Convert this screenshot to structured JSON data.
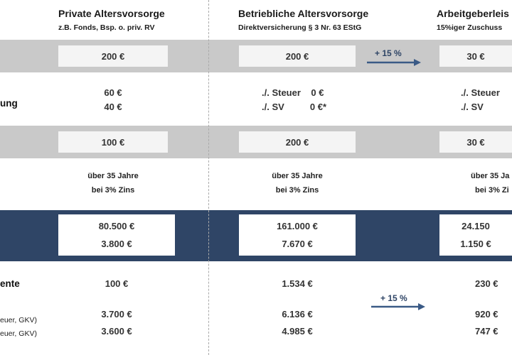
{
  "columns": {
    "private": {
      "title": "Private Altersvorsorge",
      "subtitle": "z.B. Fonds, Bsp. o. priv. RV"
    },
    "company": {
      "title": "Betriebliche Altersvorsorge",
      "subtitle": "Direktversicherung § 3 Nr. 63 EStG"
    },
    "employer": {
      "title": "Arbeitgeberleis",
      "subtitle": "15%iger  Zuschuss"
    }
  },
  "row_labels": {
    "deduction": "ung",
    "pension": "ente",
    "note1": "euer, GKV)",
    "note2": "euer, GKV)"
  },
  "contribution": {
    "private": "200 €",
    "company": "200 €",
    "employer": "30 €",
    "arrow_label": "+ 15 %"
  },
  "deduction": {
    "private": [
      "60 €",
      "40 €"
    ],
    "company": [
      "./. Steuer    0 €",
      "./. SV          0 €*"
    ],
    "employer": [
      "./. Steuer",
      "./. SV"
    ]
  },
  "net": {
    "private": "100 €",
    "company": "200 €",
    "employer": "30 €"
  },
  "period": {
    "private": [
      "über 35 Jahre",
      "bei 3% Zins"
    ],
    "company": [
      "über 35 Jahre",
      "bei 3% Zins"
    ],
    "employer": [
      "über 35 Ja",
      "bei 3% Zi"
    ]
  },
  "capital": {
    "private": [
      "80.500 €",
      "3.800 €"
    ],
    "company": [
      "161.000 €",
      "7.670 €"
    ],
    "employer": [
      "24.150",
      "1.150 €"
    ]
  },
  "pension": {
    "private": [
      "100 €",
      "3.700 €",
      "3.600 €"
    ],
    "company": [
      "1.534 €",
      "6.136 €",
      "4.985 €"
    ],
    "employer": [
      "230 €",
      "920 €",
      "747 €"
    ],
    "arrow_label": "+ 15 %"
  },
  "colors": {
    "navy": "#2f4566",
    "grey_band": "#c9c9c9",
    "arrow": "#3a5a86"
  }
}
